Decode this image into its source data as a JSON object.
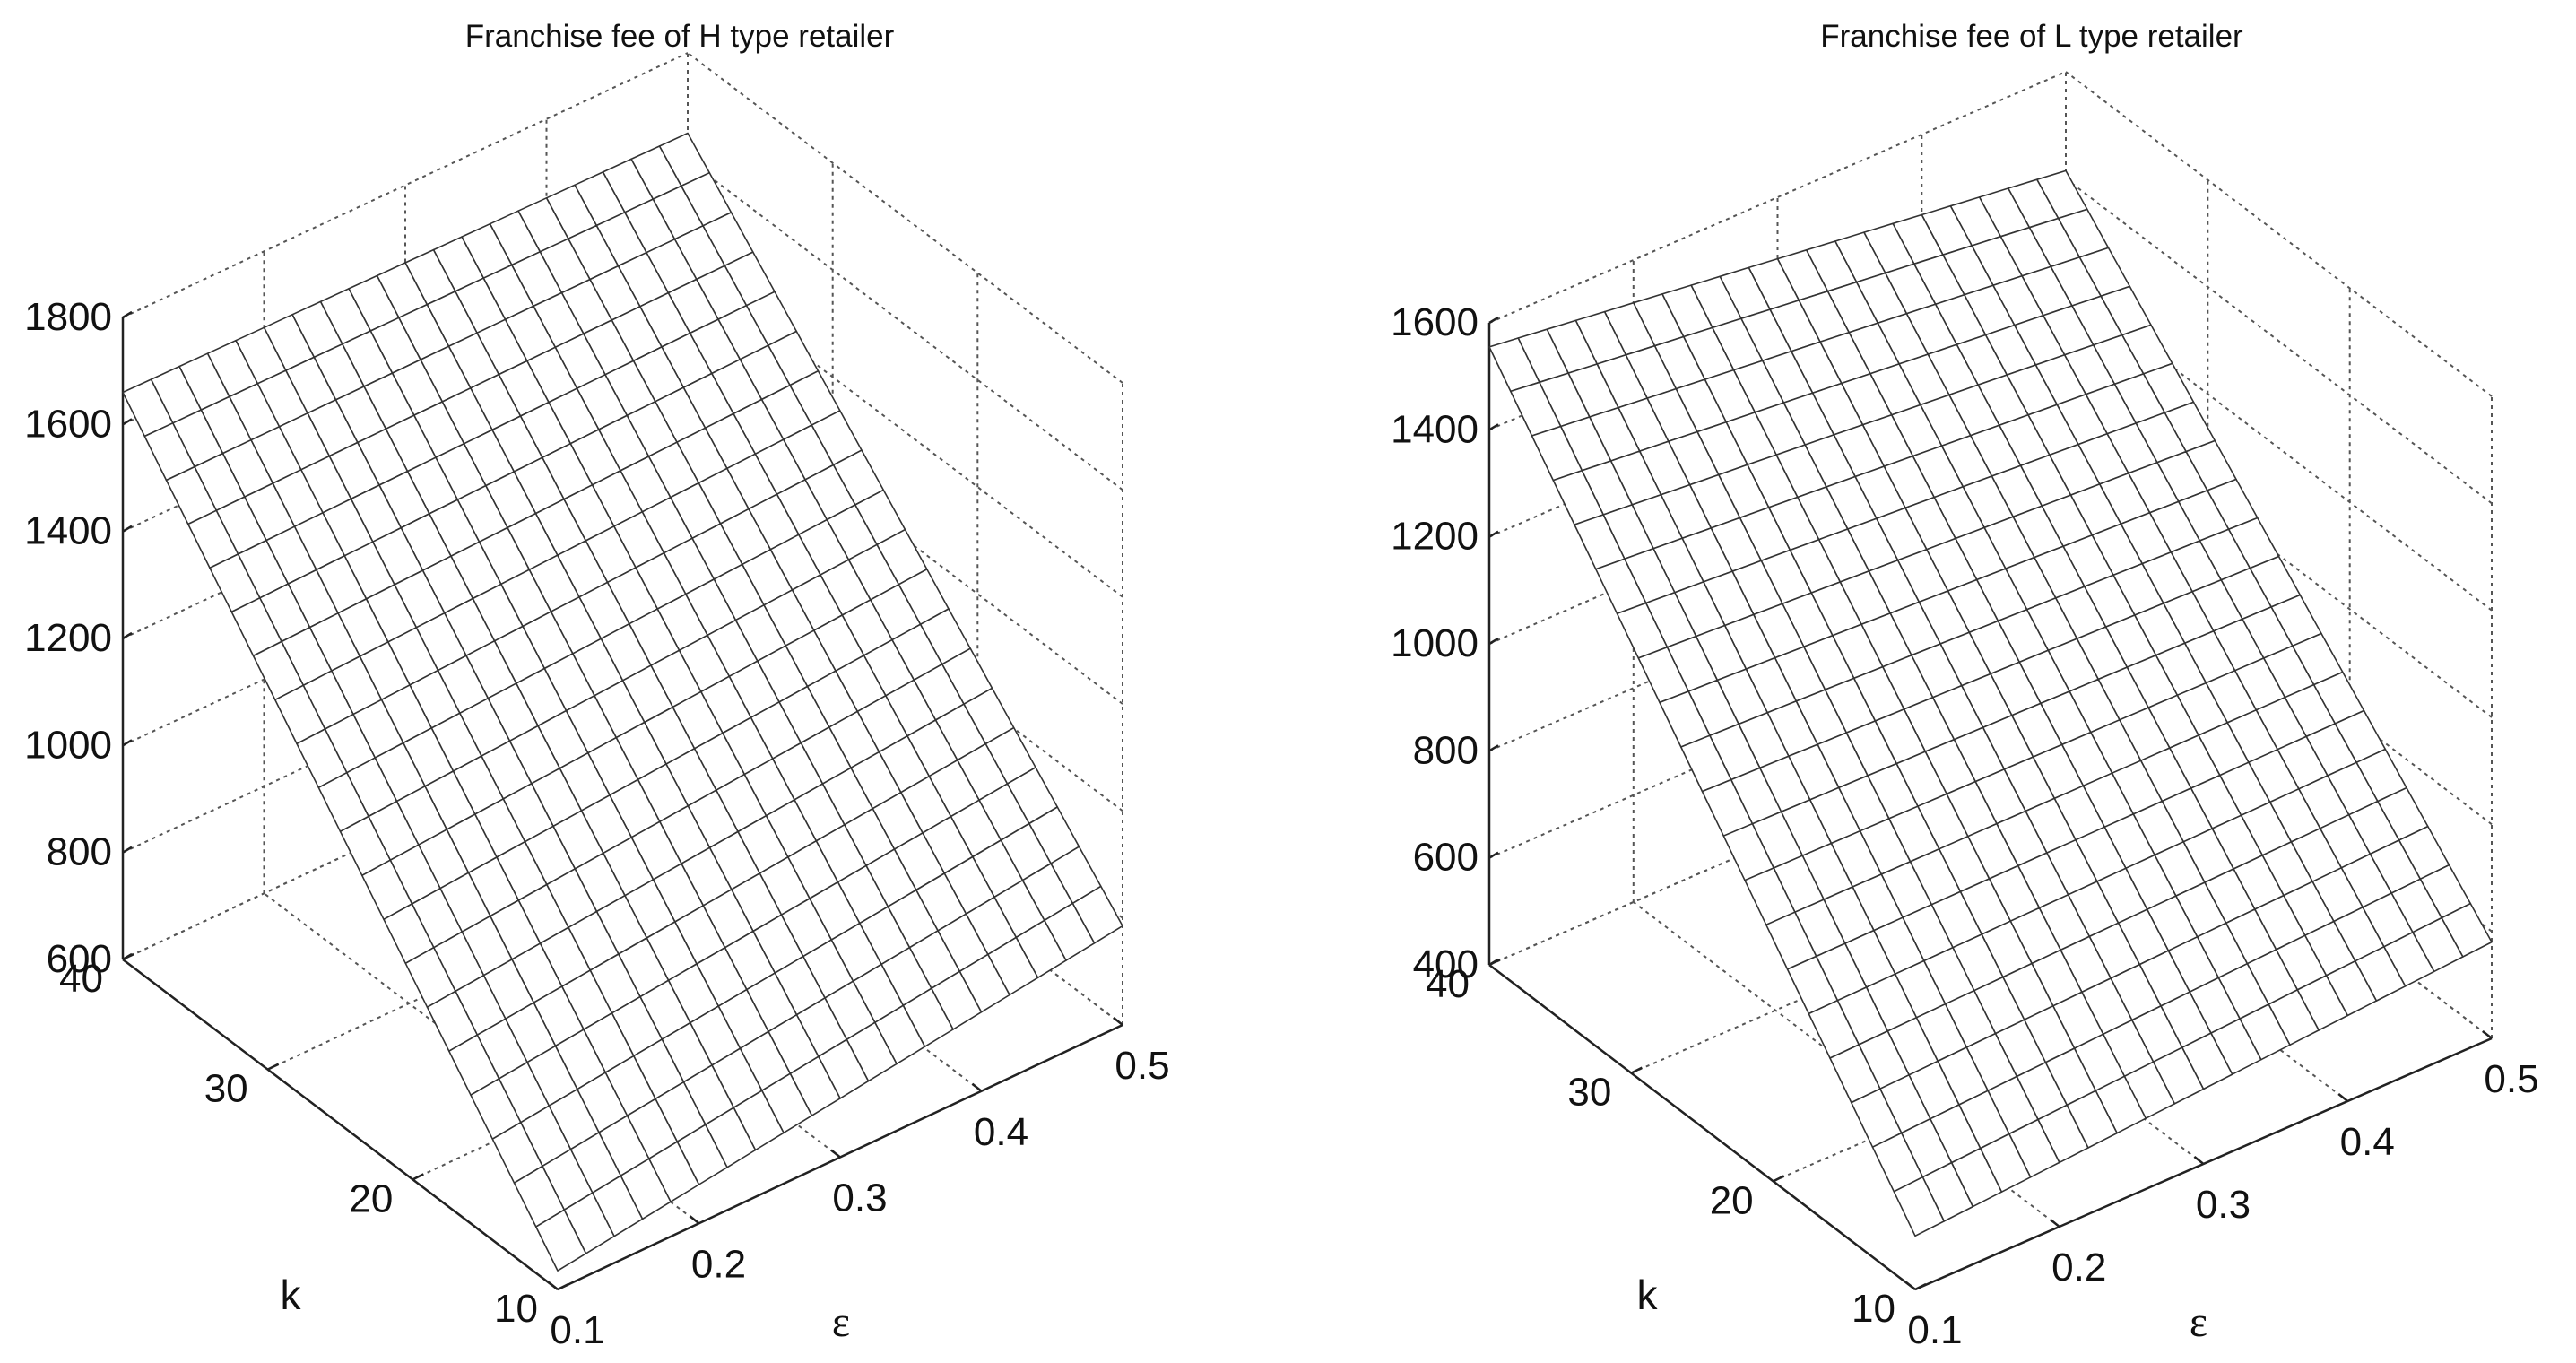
{
  "chart_data": [
    {
      "type": "surface",
      "title": "Franchise fee of H type retailer",
      "xlabel": "ε",
      "ylabel": "k",
      "zlabel": "",
      "x_ticks": [
        "0.1",
        "0.2",
        "0.3",
        "0.4",
        "0.5"
      ],
      "y_ticks": [
        "10",
        "20",
        "30",
        "40"
      ],
      "z_ticks": [
        "600",
        "800",
        "1000",
        "1200",
        "1400",
        "1600",
        "1800"
      ],
      "xlim": [
        0.1,
        0.5
      ],
      "ylim": [
        10,
        40
      ],
      "zlim": [
        600,
        1800
      ],
      "grid": true,
      "surface": {
        "x_range": [
          0.1,
          0.5
        ],
        "y_range": [
          10,
          40
        ],
        "x_steps": 20,
        "y_steps": 20,
        "corner_values": {
          "x0.1_k10": 635,
          "x0.5_k10": 785,
          "x0.1_k40": 1660,
          "x0.5_k40": 1650
        }
      }
    },
    {
      "type": "surface",
      "title": "Franchise fee of L type retailer",
      "xlabel": "ε",
      "ylabel": "k",
      "zlabel": "",
      "x_ticks": [
        "0.1",
        "0.2",
        "0.3",
        "0.4",
        "0.5"
      ],
      "y_ticks": [
        "10",
        "20",
        "30",
        "40"
      ],
      "z_ticks": [
        "400",
        "600",
        "800",
        "1000",
        "1200",
        "1400",
        "1600"
      ],
      "xlim": [
        0.1,
        0.5
      ],
      "ylim": [
        10,
        40
      ],
      "zlim": [
        400,
        1600
      ],
      "grid": true,
      "surface": {
        "x_range": [
          0.1,
          0.5
        ],
        "y_range": [
          10,
          40
        ],
        "x_steps": 20,
        "y_steps": 20,
        "corner_values": {
          "x0.1_k10": 500,
          "x0.5_k10": 580,
          "x0.1_k40": 1555,
          "x0.5_k40": 1415
        }
      }
    }
  ]
}
